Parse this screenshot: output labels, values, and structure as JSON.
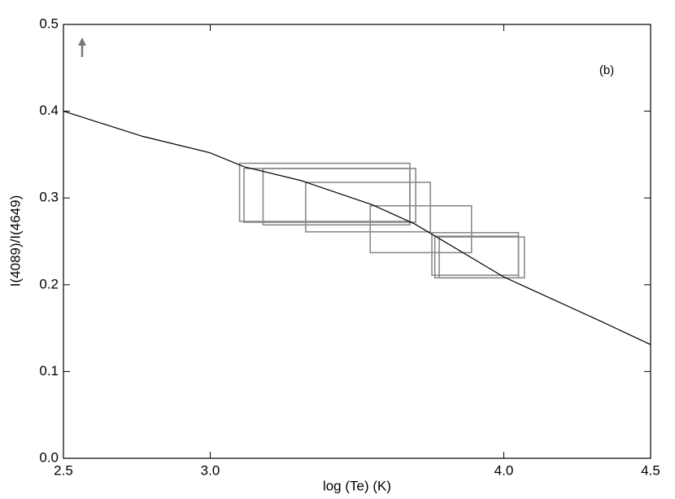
{
  "chart_data": {
    "type": "line",
    "annotation": "(b)",
    "x_label": "log (Te) (K)",
    "y_label": "I(4089)/I(4649)",
    "xlim": [
      2.5,
      4.5
    ],
    "ylim": [
      0.0,
      0.5
    ],
    "xticks": [
      {
        "value": 2.5,
        "label": "2.5"
      },
      {
        "value": 3.0,
        "label": "3.0"
      },
      {
        "value": 4.0,
        "label": "4.0"
      },
      {
        "value": 4.5,
        "label": "4.5"
      }
    ],
    "yticks": [
      {
        "value": 0.0,
        "label": "0.0"
      },
      0.1,
      0.2,
      0.3,
      0.4,
      0.5
    ],
    "color": "#000000",
    "x": [
      2.5,
      2.77,
      3.0,
      3.115,
      3.31,
      3.553,
      3.697,
      4.0,
      4.33,
      4.5
    ],
    "values": [
      0.4,
      0.371,
      0.352,
      0.336,
      0.32,
      0.292,
      0.27,
      0.209,
      0.158,
      0.131
    ],
    "boxes": {
      "color": "#8a8a8a",
      "x0": [
        3.1,
        3.115,
        3.18,
        3.325,
        3.545,
        3.755,
        3.765,
        3.78
      ],
      "x1": [
        3.68,
        3.7,
        3.68,
        3.75,
        3.89,
        4.05,
        4.05,
        4.07
      ],
      "y0": [
        0.273,
        0.272,
        0.269,
        0.261,
        0.237,
        0.211,
        0.208,
        0.208
      ],
      "y1": [
        0.34,
        0.334,
        0.334,
        0.318,
        0.291,
        0.26,
        0.256,
        0.255
      ]
    }
  }
}
